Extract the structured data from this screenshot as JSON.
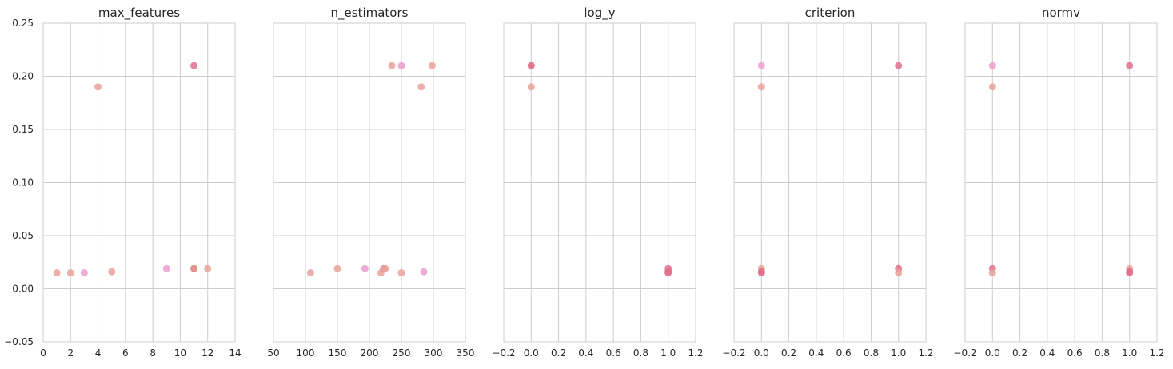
{
  "chart_data": [
    {
      "type": "scatter",
      "title": "max_features",
      "xlim": [
        0,
        14
      ],
      "ylim": [
        -0.05,
        0.25
      ],
      "x_ticks": [
        "0",
        "2",
        "4",
        "6",
        "8",
        "10",
        "12",
        "14"
      ],
      "y_ticks": [
        "−0.05",
        "0.00",
        "0.05",
        "0.10",
        "0.15",
        "0.20",
        "0.25"
      ],
      "points": [
        {
          "x": 1,
          "y": 0.015,
          "color": "#e8a29a"
        },
        {
          "x": 2,
          "y": 0.015,
          "color": "#e8a29a"
        },
        {
          "x": 3,
          "y": 0.015,
          "color": "#ec9fcf"
        },
        {
          "x": 4,
          "y": 0.19,
          "color": "#e8a29a"
        },
        {
          "x": 5,
          "y": 0.016,
          "color": "#e8a29a"
        },
        {
          "x": 9,
          "y": 0.019,
          "color": "#ec9fcf"
        },
        {
          "x": 11,
          "y": 0.21,
          "color": "#e0708c"
        },
        {
          "x": 11,
          "y": 0.21,
          "color": "#e48aa2"
        },
        {
          "x": 11,
          "y": 0.019,
          "color": "#e8a29a"
        },
        {
          "x": 11,
          "y": 0.019,
          "color": "#e08e8a"
        },
        {
          "x": 12,
          "y": 0.019,
          "color": "#e8a29a"
        }
      ]
    },
    {
      "type": "scatter",
      "title": "n_estimators",
      "xlim": [
        50,
        350
      ],
      "ylim": [
        -0.05,
        0.25
      ],
      "x_ticks": [
        "50",
        "100",
        "150",
        "200",
        "250",
        "300",
        "350"
      ],
      "y_ticks": [],
      "points": [
        {
          "x": 108,
          "y": 0.015,
          "color": "#e8a29a"
        },
        {
          "x": 150,
          "y": 0.019,
          "color": "#e8a29a"
        },
        {
          "x": 193,
          "y": 0.019,
          "color": "#ec9fcf"
        },
        {
          "x": 218,
          "y": 0.015,
          "color": "#e8a29a"
        },
        {
          "x": 222,
          "y": 0.019,
          "color": "#e48aa2"
        },
        {
          "x": 225,
          "y": 0.019,
          "color": "#e8a29a"
        },
        {
          "x": 235,
          "y": 0.21,
          "color": "#e8a29a"
        },
        {
          "x": 250,
          "y": 0.21,
          "color": "#ec9fcf"
        },
        {
          "x": 250,
          "y": 0.015,
          "color": "#e8a29a"
        },
        {
          "x": 281,
          "y": 0.19,
          "color": "#e8a29a"
        },
        {
          "x": 285,
          "y": 0.016,
          "color": "#ec9fcf"
        },
        {
          "x": 298,
          "y": 0.21,
          "color": "#e8a29a"
        }
      ]
    },
    {
      "type": "scatter",
      "title": "log_y",
      "xlim": [
        -0.2,
        1.2
      ],
      "ylim": [
        -0.05,
        0.25
      ],
      "x_ticks": [
        "−0.2",
        "0.0",
        "0.2",
        "0.4",
        "0.6",
        "0.8",
        "1.0",
        "1.2"
      ],
      "y_ticks": [],
      "points": [
        {
          "x": 0,
          "y": 0.21,
          "color": "#e8a29a"
        },
        {
          "x": 0,
          "y": 0.21,
          "color": "#e0708c"
        },
        {
          "x": 0,
          "y": 0.19,
          "color": "#e8a29a"
        },
        {
          "x": 1,
          "y": 0.019,
          "color": "#e0708c"
        },
        {
          "x": 1,
          "y": 0.016,
          "color": "#e0708c"
        },
        {
          "x": 1,
          "y": 0.015,
          "color": "#e0708c"
        }
      ]
    },
    {
      "type": "scatter",
      "title": "criterion",
      "xlim": [
        -0.2,
        1.2
      ],
      "ylim": [
        -0.05,
        0.25
      ],
      "x_ticks": [
        "−0.2",
        "0.0",
        "0.2",
        "0.4",
        "0.6",
        "0.8",
        "1.0",
        "1.2"
      ],
      "y_ticks": [],
      "points": [
        {
          "x": 0,
          "y": 0.21,
          "color": "#ec9fcf"
        },
        {
          "x": 0,
          "y": 0.19,
          "color": "#e8a29a"
        },
        {
          "x": 0,
          "y": 0.019,
          "color": "#e8a29a"
        },
        {
          "x": 0,
          "y": 0.016,
          "color": "#e0708c"
        },
        {
          "x": 0,
          "y": 0.015,
          "color": "#e0708c"
        },
        {
          "x": 1,
          "y": 0.21,
          "color": "#e0708c"
        },
        {
          "x": 1,
          "y": 0.019,
          "color": "#e0708c"
        },
        {
          "x": 1,
          "y": 0.015,
          "color": "#e8a29a"
        }
      ]
    },
    {
      "type": "scatter",
      "title": "normv",
      "xlim": [
        -0.2,
        1.2
      ],
      "ylim": [
        -0.05,
        0.25
      ],
      "x_ticks": [
        "−0.2",
        "0.0",
        "0.2",
        "0.4",
        "0.6",
        "0.8",
        "1.0",
        "1.2"
      ],
      "y_ticks": [],
      "points": [
        {
          "x": 0,
          "y": 0.21,
          "color": "#ec9fcf"
        },
        {
          "x": 0,
          "y": 0.19,
          "color": "#e8a29a"
        },
        {
          "x": 0,
          "y": 0.019,
          "color": "#e0708c"
        },
        {
          "x": 0,
          "y": 0.015,
          "color": "#e8a29a"
        },
        {
          "x": 1,
          "y": 0.21,
          "color": "#e0708c"
        },
        {
          "x": 1,
          "y": 0.019,
          "color": "#e8a29a"
        },
        {
          "x": 1,
          "y": 0.016,
          "color": "#e0708c"
        },
        {
          "x": 1,
          "y": 0.015,
          "color": "#e0708c"
        }
      ]
    }
  ]
}
